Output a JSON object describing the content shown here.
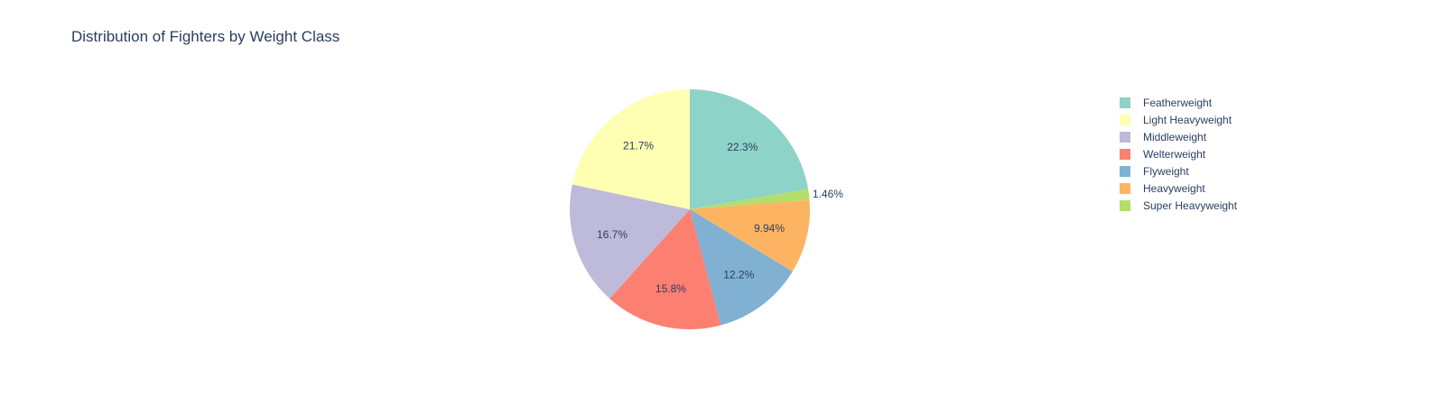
{
  "chart_data": {
    "type": "pie",
    "title": "Distribution of Fighters by Weight Class",
    "slices": [
      {
        "label": "Featherweight",
        "percent": 22.3,
        "percent_label": "22.3%",
        "color": "#8dd3c7"
      },
      {
        "label": "Super Heavyweight",
        "percent": 1.46,
        "percent_label": "1.46%",
        "color": "#b3de69"
      },
      {
        "label": "Heavyweight",
        "percent": 9.94,
        "percent_label": "9.94%",
        "color": "#fdb462"
      },
      {
        "label": "Flyweight",
        "percent": 12.2,
        "percent_label": "12.2%",
        "color": "#80b1d3"
      },
      {
        "label": "Welterweight",
        "percent": 15.8,
        "percent_label": "15.8%",
        "color": "#fb8072"
      },
      {
        "label": "Middleweight",
        "percent": 16.7,
        "percent_label": "16.7%",
        "color": "#bebada"
      },
      {
        "label": "Light Heavyweight",
        "percent": 21.7,
        "percent_label": "21.7%",
        "color": "#ffffb3"
      }
    ],
    "legend": [
      {
        "label": "Featherweight",
        "color": "#8dd3c7"
      },
      {
        "label": "Light Heavyweight",
        "color": "#ffffb3"
      },
      {
        "label": "Middleweight",
        "color": "#bebada"
      },
      {
        "label": "Welterweight",
        "color": "#fb8072"
      },
      {
        "label": "Flyweight",
        "color": "#80b1d3"
      },
      {
        "label": "Heavyweight",
        "color": "#fdb462"
      },
      {
        "label": "Super Heavyweight",
        "color": "#b3de69"
      }
    ],
    "direction": "clockwise",
    "start_angle": "12 o'clock",
    "legend_position": "right"
  }
}
